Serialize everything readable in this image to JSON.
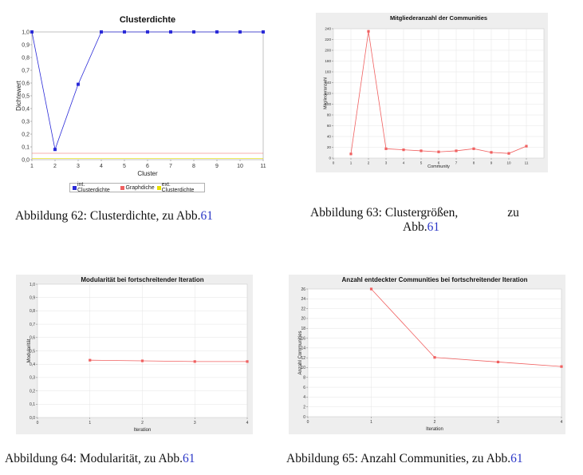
{
  "figures": [
    {
      "caption_prefix": "Abbildung 62: Clusterdichte, zu Abb.",
      "caption_ref": "61"
    },
    {
      "caption_prefix": "Abbildung 63: Clustergrößen,",
      "caption_suffix": "zu",
      "caption_line2": "Abb.",
      "caption_ref": "61"
    },
    {
      "caption_prefix": "Abbildung 64: Modularität, zu Abb.",
      "caption_ref": "61"
    },
    {
      "caption_prefix": "Abbildung 65: Anzahl Communities, zu Abb.",
      "caption_ref": "61"
    }
  ],
  "colors": {
    "blue_series": "#2a2ad8",
    "red_series": "#f06060",
    "yellow_series": "#e8e000",
    "panel_bg": "#eeeeee",
    "grid": "#e4e4e4"
  },
  "chart_data": [
    {
      "type": "line",
      "title": "Clusterdichte",
      "xlabel": "Cluster",
      "ylabel": "Dichtewert",
      "x": [
        1,
        2,
        3,
        4,
        5,
        6,
        7,
        8,
        9,
        10,
        11
      ],
      "xlim": [
        1,
        11
      ],
      "ylim": [
        0,
        1.0
      ],
      "yticks": [
        "0,0",
        "0,1",
        "0,2",
        "0,3",
        "0,4",
        "0,5",
        "0,6",
        "0,7",
        "0,8",
        "0,9",
        "1,0"
      ],
      "series": [
        {
          "name": "int. Clusterdichte",
          "color": "#2a2ad8",
          "values": [
            1.0,
            0.08,
            0.59,
            1.0,
            1.0,
            1.0,
            1.0,
            1.0,
            1.0,
            1.0,
            1.0
          ]
        },
        {
          "name": "Graphdiche",
          "color": "#f06060",
          "values": [
            0.05,
            0.05,
            0.05,
            0.05,
            0.05,
            0.05,
            0.05,
            0.05,
            0.05,
            0.05,
            0.05
          ]
        },
        {
          "name": "ext. Clusterdichte",
          "color": "#e8e000",
          "values": [
            0.01,
            0.01,
            0.01,
            0.01,
            0.01,
            0.01,
            0.01,
            0.01,
            0.01,
            0.01,
            0.01
          ]
        }
      ],
      "legend": "bottom"
    },
    {
      "type": "line",
      "title": "Mitgliederanzahl der Communities",
      "xlabel": "Community",
      "ylabel": "Mitgliederanzahl",
      "x": [
        1,
        2,
        3,
        4,
        5,
        6,
        7,
        8,
        9,
        10,
        11
      ],
      "xlim": [
        0,
        12
      ],
      "ylim": [
        0,
        250
      ],
      "xticks": [
        "0",
        "1",
        "2",
        "3",
        "4",
        "5",
        "6",
        "7",
        "8",
        "9",
        "10",
        "11"
      ],
      "yticks": [
        "0",
        "20",
        "40",
        "60",
        "80",
        "100",
        "120",
        "140",
        "160",
        "180",
        "200",
        "220",
        "240"
      ],
      "series": [
        {
          "values": [
            8,
            245,
            18,
            16,
            14,
            12,
            14,
            18,
            11,
            9,
            23
          ]
        }
      ]
    },
    {
      "type": "line",
      "title": "Modularität bei fortschreitender Iteration",
      "xlabel": "Iteration",
      "ylabel": "Modularität",
      "x": [
        1,
        2,
        3,
        4
      ],
      "xlim": [
        0,
        4
      ],
      "ylim": [
        0,
        1.0
      ],
      "xticks": [
        "0",
        "1",
        "2",
        "3",
        "4"
      ],
      "yticks": [
        "0,0",
        "0,1",
        "0,2",
        "0,3",
        "0,4",
        "0,5",
        "0,6",
        "0,7",
        "0,8",
        "0,9",
        "1,0"
      ],
      "series": [
        {
          "values": [
            0.43,
            0.425,
            0.42,
            0.42
          ]
        }
      ]
    },
    {
      "type": "line",
      "title": "Anzahl entdeckter Communities bei fortschreitender Iteration",
      "xlabel": "Iteration",
      "ylabel": "Anzahl Communities",
      "x": [
        1,
        2,
        3,
        4
      ],
      "xlim": [
        0,
        4
      ],
      "ylim": [
        0,
        28
      ],
      "xticks": [
        "0",
        "1",
        "2",
        "3",
        "4"
      ],
      "yticks": [
        "0",
        "2",
        "4",
        "6",
        "8",
        "10",
        "12",
        "14",
        "16",
        "18",
        "20",
        "22",
        "24",
        "26"
      ],
      "series": [
        {
          "values": [
            28,
            13,
            12,
            11
          ]
        }
      ]
    }
  ]
}
